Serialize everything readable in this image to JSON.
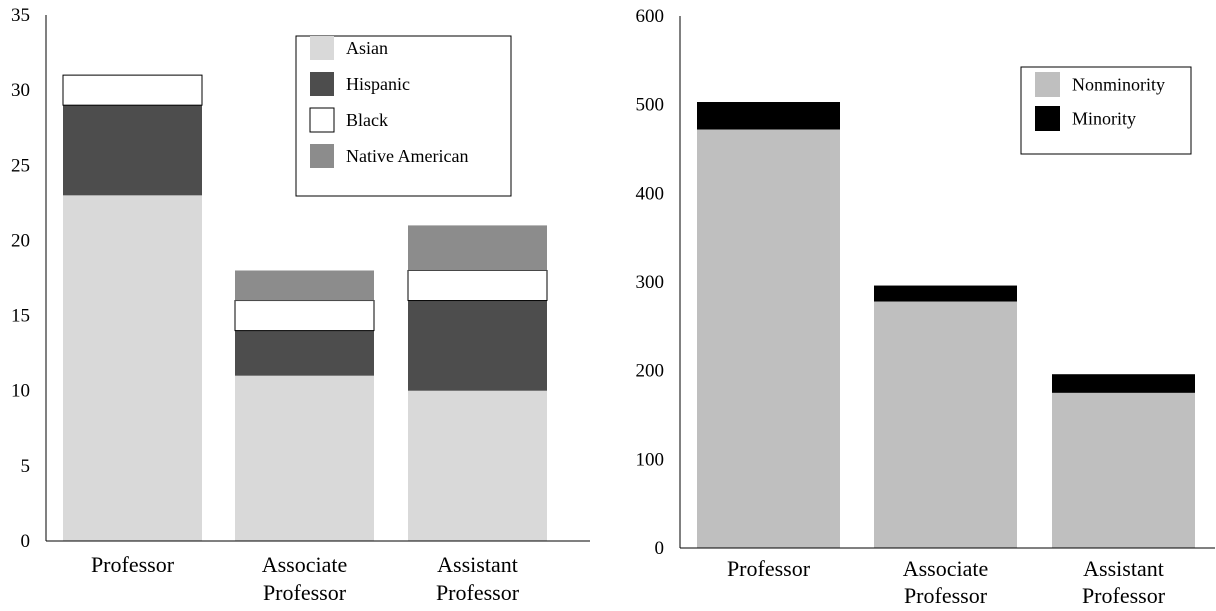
{
  "chart_data": [
    {
      "type": "bar",
      "stacked": true,
      "categories": [
        [
          "Professor"
        ],
        [
          "Associate",
          "Professor"
        ],
        [
          "Assistant",
          "Professor"
        ]
      ],
      "series": [
        {
          "name": "Asian",
          "color": "#d9d9d9",
          "values": [
            23,
            11,
            10
          ]
        },
        {
          "name": "Hispanic",
          "color": "#4d4d4d",
          "values": [
            6,
            3,
            6
          ]
        },
        {
          "name": "Black",
          "color": "#ffffff",
          "values": [
            2,
            2,
            2
          ]
        },
        {
          "name": "Native American",
          "color": "#8c8c8c",
          "values": [
            0,
            2,
            3
          ]
        }
      ],
      "yticks": [
        0,
        5,
        10,
        15,
        20,
        25,
        30,
        35
      ],
      "ylim": [
        0,
        35
      ],
      "legend_position": "top-right",
      "grid": false
    },
    {
      "type": "bar",
      "stacked": true,
      "categories": [
        [
          "Professor"
        ],
        [
          "Associate",
          "Professor"
        ],
        [
          "Assistant",
          "Professor"
        ]
      ],
      "series": [
        {
          "name": "Nonminority",
          "color": "#bfbfbf",
          "values": [
            472,
            278,
            175
          ]
        },
        {
          "name": "Minority",
          "color": "#000000",
          "values": [
            31,
            18,
            21
          ]
        }
      ],
      "yticks": [
        0,
        100,
        200,
        300,
        400,
        500,
        600
      ],
      "ylim": [
        0,
        600
      ],
      "legend_position": "top-right",
      "grid": false
    }
  ]
}
